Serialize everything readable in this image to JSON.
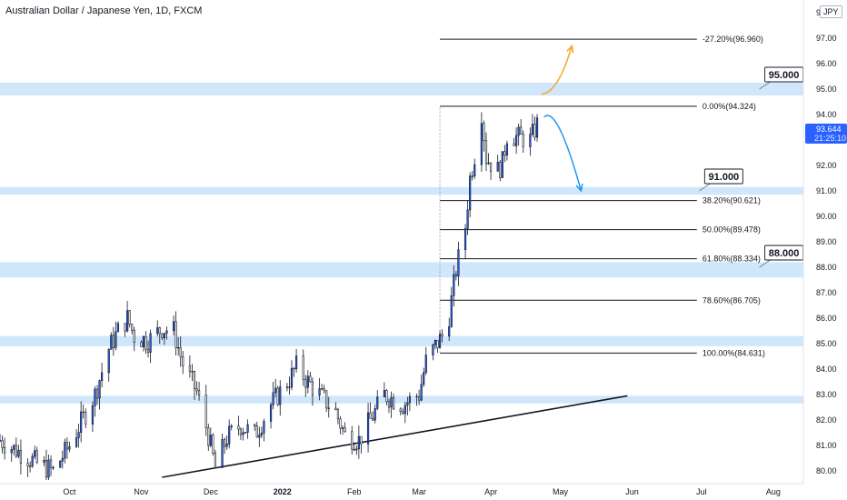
{
  "header": {
    "title": "Australian Dollar / Japanese Yen, 1D, FXCM",
    "currency": "JPY"
  },
  "price_tag": {
    "price": "93.644",
    "countdown": "21:25:10",
    "color": "#2962ff"
  },
  "colors": {
    "up": "#2962ff",
    "down": "#ffffff",
    "wick": "#131722",
    "zone": "#cfe6fb",
    "up_arrow": "#f5a623",
    "down_arrow": "#2196f3"
  },
  "chart_data": {
    "type": "candlestick",
    "x_range": [
      "2021-09-01",
      "2022-08-14"
    ],
    "ylim": [
      79.5,
      98.5
    ],
    "y_ticks": [
      98.0,
      97.0,
      96.0,
      95.0,
      94.0,
      93.0,
      92.0,
      91.0,
      90.0,
      89.0,
      88.0,
      87.0,
      86.0,
      85.0,
      84.0,
      83.0,
      82.0,
      81.0,
      80.0
    ],
    "x_ticks": [
      {
        "label": "Oct",
        "date": "2021-10-01"
      },
      {
        "label": "Nov",
        "date": "2021-11-01"
      },
      {
        "label": "Dec",
        "date": "2021-12-01"
      },
      {
        "label": "2022",
        "date": "2022-01-01"
      },
      {
        "label": "Feb",
        "date": "2022-02-01"
      },
      {
        "label": "Mar",
        "date": "2022-03-01"
      },
      {
        "label": "Apr",
        "date": "2022-04-01"
      },
      {
        "label": "May",
        "date": "2022-05-01"
      },
      {
        "label": "Jun",
        "date": "2022-06-01"
      },
      {
        "label": "Jul",
        "date": "2022-07-01"
      },
      {
        "label": "Aug",
        "date": "2022-08-01"
      }
    ],
    "price_path": [
      [
        "2021-09-01",
        81.2
      ],
      [
        "2021-09-10",
        80.7
      ],
      [
        "2021-09-17",
        80.3
      ],
      [
        "2021-09-24",
        80.0
      ],
      [
        "2021-10-01",
        81.0
      ],
      [
        "2021-10-06",
        81.9
      ],
      [
        "2021-10-12",
        83.0
      ],
      [
        "2021-10-18",
        84.8
      ],
      [
        "2021-10-22",
        85.5
      ],
      [
        "2021-10-26",
        86.0
      ],
      [
        "2021-10-29",
        85.3
      ],
      [
        "2021-11-04",
        85.1
      ],
      [
        "2021-11-10",
        85.6
      ],
      [
        "2021-11-15",
        85.5
      ],
      [
        "2021-11-19",
        84.2
      ],
      [
        "2021-11-25",
        83.1
      ],
      [
        "2021-11-30",
        81.4
      ],
      [
        "2021-12-03",
        80.1
      ],
      [
        "2021-12-08",
        81.3
      ],
      [
        "2021-12-14",
        81.8
      ],
      [
        "2021-12-20",
        81.4
      ],
      [
        "2021-12-27",
        82.6
      ],
      [
        "2022-01-04",
        83.6
      ],
      [
        "2022-01-07",
        84.1
      ],
      [
        "2022-01-12",
        83.5
      ],
      [
        "2022-01-18",
        82.9
      ],
      [
        "2022-01-24",
        82.3
      ],
      [
        "2022-01-28",
        81.4
      ],
      [
        "2022-02-03",
        81.2
      ],
      [
        "2022-02-08",
        82.0
      ],
      [
        "2022-02-14",
        83.0
      ],
      [
        "2022-02-22",
        82.6
      ],
      [
        "2022-03-01",
        83.0
      ],
      [
        "2022-03-04",
        84.3
      ],
      [
        "2022-03-08",
        84.9
      ],
      [
        "2022-03-11",
        85.3
      ],
      [
        "2022-03-14",
        86.1
      ],
      [
        "2022-03-17",
        87.9
      ],
      [
        "2022-03-21",
        89.6
      ],
      [
        "2022-03-23",
        91.5
      ],
      [
        "2022-03-25",
        92.4
      ],
      [
        "2022-03-28",
        94.1
      ],
      [
        "2022-03-30",
        92.3
      ],
      [
        "2022-04-04",
        91.8
      ],
      [
        "2022-04-06",
        92.1
      ],
      [
        "2022-04-08",
        93.2
      ],
      [
        "2022-04-13",
        93.1
      ],
      [
        "2022-04-18",
        93.0
      ],
      [
        "2022-04-21",
        93.6
      ]
    ],
    "support_zones": [
      {
        "from": 94.75,
        "to": 95.25
      },
      {
        "from": 90.85,
        "to": 91.15
      },
      {
        "from": 87.6,
        "to": 88.2
      },
      {
        "from": 84.9,
        "to": 85.3
      },
      {
        "from": 82.65,
        "to": 82.95
      }
    ],
    "trendline": {
      "start": [
        "2021-11-10",
        79.75
      ],
      "end": [
        "2022-05-30",
        82.95
      ]
    },
    "fib_levels": [
      {
        "label": "-27.20%(96.960)",
        "value": 96.96
      },
      {
        "label": "0.00%(94.324)",
        "value": 94.324
      },
      {
        "label": "38.20%(90.621)",
        "value": 90.621
      },
      {
        "label": "50.00%(89.478)",
        "value": 89.478
      },
      {
        "label": "61.80%(88.334)",
        "value": 88.334
      },
      {
        "label": "78.60%(86.705)",
        "value": 86.705
      },
      {
        "label": "100.00%(84.631)",
        "value": 84.631
      }
    ],
    "fib_range": {
      "start": "2022-03-10",
      "end": "2022-06-29"
    },
    "callouts": [
      {
        "label": "95.000",
        "value": 95.0,
        "date": "2022-07-26"
      },
      {
        "label": "91.000",
        "value": 91.0,
        "date": "2022-06-30"
      },
      {
        "label": "88.000",
        "value": 88.0,
        "date": "2022-07-26"
      }
    ],
    "projection_up": {
      "start": [
        "2022-04-23",
        94.8
      ],
      "end": [
        "2022-05-06",
        96.7
      ]
    },
    "projection_down": {
      "start": [
        "2022-04-24",
        93.9
      ],
      "end": [
        "2022-05-10",
        91.0
      ]
    }
  }
}
